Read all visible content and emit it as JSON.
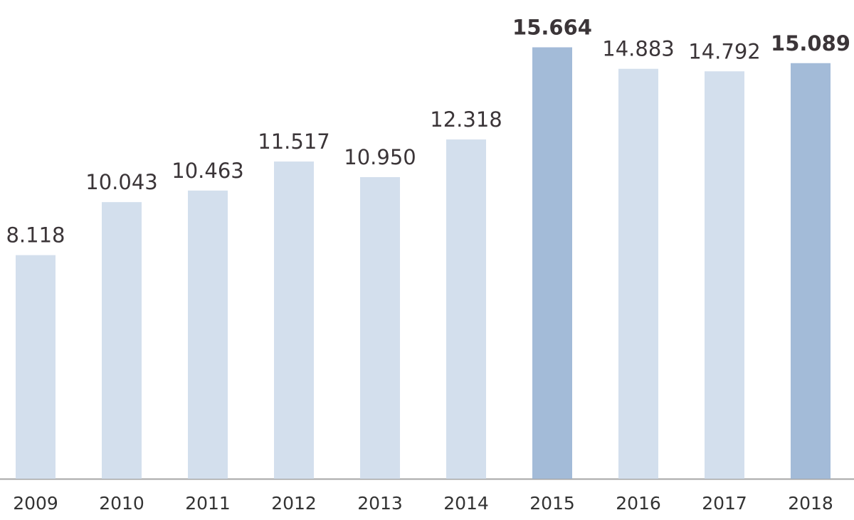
{
  "chart_data": {
    "type": "bar",
    "categories": [
      "2009",
      "2010",
      "2011",
      "2012",
      "2013",
      "2014",
      "2015",
      "2016",
      "2017",
      "2018"
    ],
    "values": [
      8.118,
      10.043,
      10.463,
      11.517,
      10.95,
      12.318,
      15.664,
      14.883,
      14.792,
      15.089
    ],
    "value_labels": [
      "8.118",
      "10.043",
      "10.463",
      "11.517",
      "10.950",
      "12.318",
      "15.664",
      "14.883",
      "14.792",
      "15.089"
    ],
    "color": "#d3dfed",
    "highlight_color": "#a3bbd8",
    "highlighted": [
      false,
      false,
      false,
      false,
      false,
      false,
      true,
      false,
      false,
      true
    ]
  }
}
